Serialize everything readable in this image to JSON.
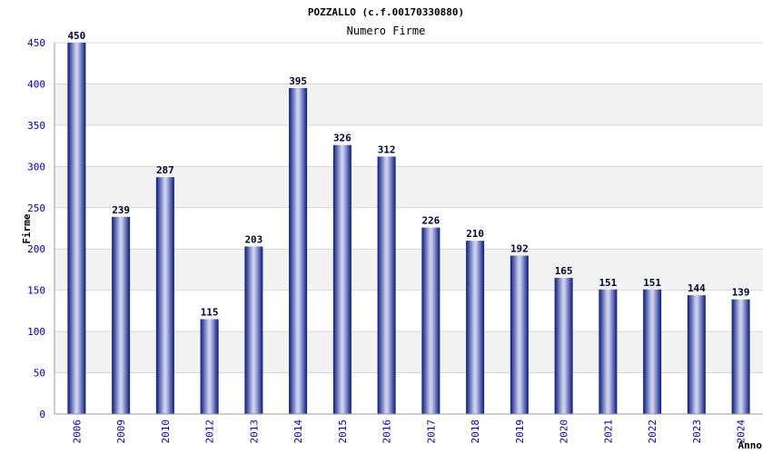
{
  "chart_data": {
    "type": "bar",
    "title": "POZZALLO (c.f.00170330880)",
    "subtitle": "Numero Firme",
    "xlabel": "Anno",
    "ylabel": "Firme",
    "categories": [
      "2006",
      "2009",
      "2010",
      "2012",
      "2013",
      "2014",
      "2015",
      "2016",
      "2017",
      "2018",
      "2019",
      "2020",
      "2021",
      "2022",
      "2023",
      "2024"
    ],
    "values": [
      450,
      239,
      287,
      115,
      203,
      395,
      326,
      312,
      226,
      210,
      192,
      165,
      151,
      151,
      144,
      139
    ],
    "ylim": [
      0,
      450
    ],
    "yticks": [
      0,
      50,
      100,
      150,
      200,
      250,
      300,
      350,
      400,
      450
    ],
    "grid": true,
    "colors": {
      "bar_edge": "#0a1a7a",
      "bar_mid": "#c8cef0",
      "band": "#f2f2f2",
      "grid": "#d8d8d8",
      "tick_text": "#0000aa"
    }
  }
}
